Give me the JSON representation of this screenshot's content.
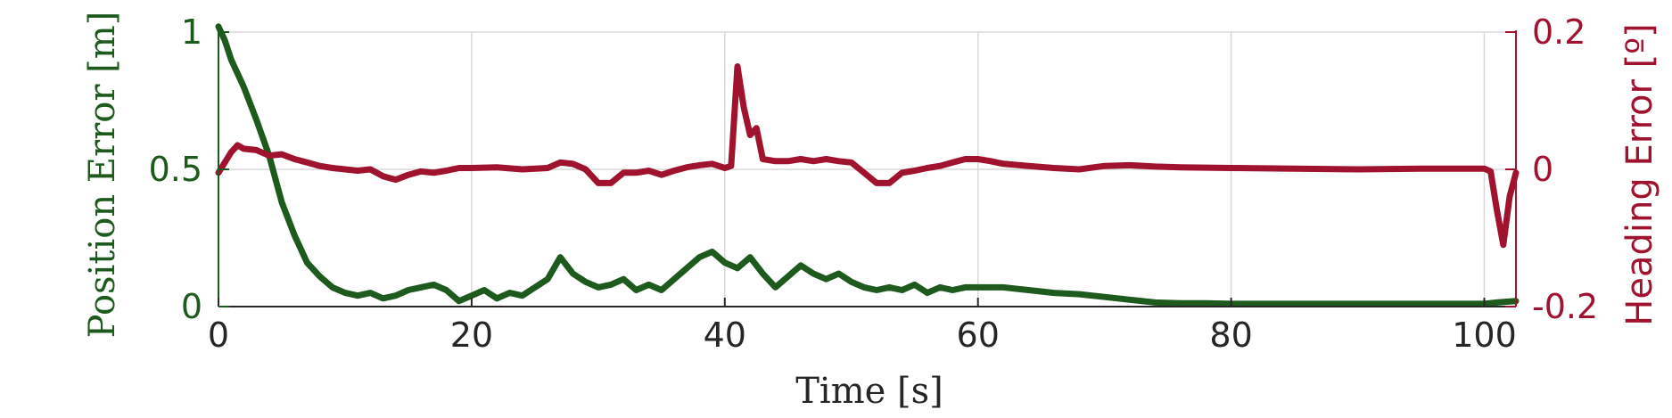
{
  "chart_data": {
    "type": "line",
    "title": "",
    "xlabel": "Time [s]",
    "ylabel_left": "Position Error [m]",
    "ylabel_right": "Heading Error [º]",
    "xlim": [
      0,
      102.5
    ],
    "ylim_left": [
      0,
      1.0
    ],
    "ylim_right": [
      -0.2,
      0.2
    ],
    "x_ticks": [
      0,
      20,
      40,
      60,
      80,
      100
    ],
    "x_tick_labels": [
      "0",
      "20",
      "40",
      "60",
      "80",
      "100"
    ],
    "y_left_ticks": [
      0,
      0.5,
      1
    ],
    "y_left_tick_labels": [
      "0",
      "0.5",
      "1"
    ],
    "y_right_ticks": [
      -0.2,
      0,
      0.2
    ],
    "y_right_tick_labels": [
      "-0.2",
      "0",
      "0.2"
    ],
    "grid": true,
    "colors": {
      "position": "#1e5a1e",
      "heading": "#a0132f",
      "grid": "#d9d9d9",
      "axis": "#262626"
    },
    "series": [
      {
        "axis": "left",
        "color": "#1e5a1e",
        "x": [
          0,
          0.5,
          1,
          2,
          3,
          4,
          5,
          6,
          7,
          8,
          9,
          10,
          11,
          12,
          13,
          14,
          15,
          16,
          17,
          18,
          19,
          20,
          21,
          22,
          23,
          24,
          25,
          26,
          27,
          28,
          29,
          30,
          31,
          32,
          33,
          34,
          35,
          36,
          37,
          38,
          39,
          40,
          41,
          42,
          43,
          44,
          45,
          46,
          47,
          48,
          49,
          50,
          51,
          52,
          53,
          54,
          55,
          56,
          57,
          58,
          59,
          60,
          62,
          64,
          66,
          68,
          70,
          72,
          74,
          76,
          78,
          80,
          85,
          90,
          95,
          100,
          101,
          102.5
        ],
        "y": [
          1.02,
          0.97,
          0.9,
          0.8,
          0.68,
          0.55,
          0.38,
          0.26,
          0.16,
          0.11,
          0.07,
          0.05,
          0.04,
          0.05,
          0.03,
          0.04,
          0.06,
          0.07,
          0.08,
          0.06,
          0.02,
          0.04,
          0.06,
          0.03,
          0.05,
          0.04,
          0.07,
          0.1,
          0.18,
          0.12,
          0.09,
          0.07,
          0.08,
          0.1,
          0.06,
          0.08,
          0.06,
          0.1,
          0.14,
          0.18,
          0.2,
          0.16,
          0.14,
          0.18,
          0.12,
          0.07,
          0.11,
          0.15,
          0.12,
          0.1,
          0.12,
          0.09,
          0.07,
          0.06,
          0.07,
          0.06,
          0.08,
          0.05,
          0.07,
          0.06,
          0.07,
          0.07,
          0.07,
          0.06,
          0.05,
          0.045,
          0.035,
          0.025,
          0.015,
          0.012,
          0.012,
          0.01,
          0.01,
          0.01,
          0.01,
          0.01,
          0.015,
          0.02
        ]
      },
      {
        "axis": "right",
        "color": "#a0132f",
        "x": [
          0,
          0.5,
          1,
          1.5,
          2,
          3,
          4,
          5,
          6,
          7,
          8,
          9,
          10,
          11,
          12,
          13,
          14,
          15,
          16,
          17,
          18,
          19,
          20,
          22,
          24,
          26,
          27,
          28,
          29,
          30,
          31,
          32,
          33,
          34,
          35,
          36,
          37,
          38,
          39,
          40,
          40.5,
          41,
          41.5,
          42,
          42.5,
          43,
          44,
          45,
          46,
          47,
          48,
          49,
          50,
          51,
          52,
          53,
          54,
          55,
          56,
          57,
          58,
          59,
          60,
          61,
          62,
          64,
          66,
          68,
          70,
          72,
          74,
          76,
          80,
          85,
          90,
          95,
          100,
          100.5,
          101,
          101.5,
          102,
          102.5
        ],
        "y": [
          -0.005,
          0.01,
          0.025,
          0.035,
          0.03,
          0.028,
          0.02,
          0.022,
          0.015,
          0.01,
          0.005,
          0.002,
          0.0,
          -0.002,
          0.0,
          -0.01,
          -0.015,
          -0.008,
          -0.003,
          -0.005,
          -0.002,
          0.002,
          0.002,
          0.003,
          0.0,
          0.002,
          0.01,
          0.008,
          0.0,
          -0.02,
          -0.02,
          -0.005,
          -0.005,
          -0.002,
          -0.008,
          -0.002,
          0.003,
          0.006,
          0.008,
          0.002,
          0.005,
          0.15,
          0.09,
          0.05,
          0.06,
          0.015,
          0.012,
          0.012,
          0.015,
          0.012,
          0.015,
          0.012,
          0.01,
          -0.005,
          -0.02,
          -0.02,
          -0.005,
          -0.002,
          0.002,
          0.005,
          0.01,
          0.015,
          0.015,
          0.012,
          0.008,
          0.005,
          0.002,
          0.0,
          0.005,
          0.006,
          0.004,
          0.003,
          0.002,
          0.001,
          0.0,
          0.001,
          0.001,
          -0.003,
          -0.06,
          -0.11,
          -0.04,
          -0.005
        ]
      }
    ]
  }
}
